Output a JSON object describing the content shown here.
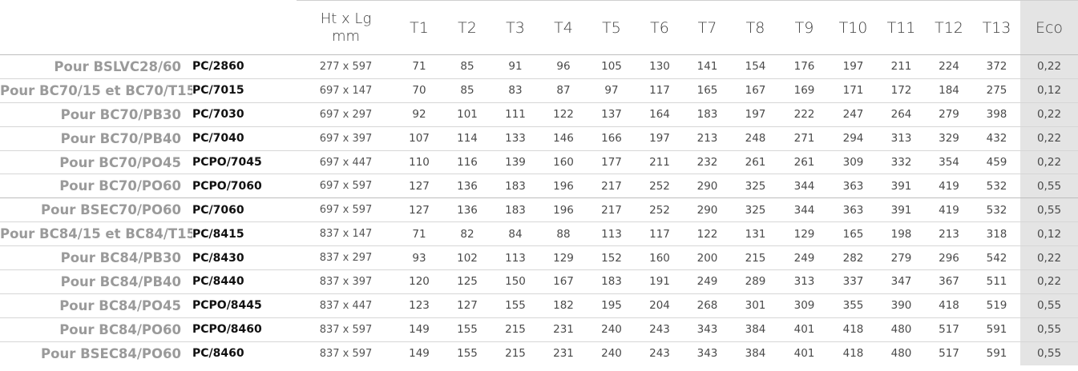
{
  "table": {
    "headers": {
      "dims_line1": "Ht x Lg",
      "dims_line2": "mm",
      "t_columns": [
        "T1",
        "T2",
        "T3",
        "T4",
        "T5",
        "T6",
        "T7",
        "T8",
        "T9",
        "T10",
        "T11",
        "T12",
        "T13"
      ],
      "eco": "Eco"
    },
    "rows": [
      {
        "product": "Pour BSLVC28/60",
        "ref": "PC/2860",
        "dims": "277 x 597",
        "t": [
          "71",
          "85",
          "91",
          "96",
          "105",
          "130",
          "141",
          "154",
          "176",
          "197",
          "211",
          "224",
          "372"
        ],
        "eco": "0,22"
      },
      {
        "product": "Pour BC70/15 et BC70/T15",
        "ref": "PC/7015",
        "dims": "697 x 147",
        "t": [
          "70",
          "85",
          "83",
          "87",
          "97",
          "117",
          "165",
          "167",
          "169",
          "171",
          "172",
          "184",
          "275"
        ],
        "eco": "0,12"
      },
      {
        "product": "Pour BC70/PB30",
        "ref": "PC/7030",
        "dims": "697 x 297",
        "t": [
          "92",
          "101",
          "111",
          "122",
          "137",
          "164",
          "183",
          "197",
          "222",
          "247",
          "264",
          "279",
          "398"
        ],
        "eco": "0,22"
      },
      {
        "product": "Pour BC70/PB40",
        "ref": "PC/7040",
        "dims": "697 x 397",
        "t": [
          "107",
          "114",
          "133",
          "146",
          "166",
          "197",
          "213",
          "248",
          "271",
          "294",
          "313",
          "329",
          "432"
        ],
        "eco": "0,22"
      },
      {
        "product": "Pour BC70/PO45",
        "ref": "PCPO/7045",
        "dims": "697 x 447",
        "t": [
          "110",
          "116",
          "139",
          "160",
          "177",
          "211",
          "232",
          "261",
          "261",
          "309",
          "332",
          "354",
          "459"
        ],
        "eco": "0,22"
      },
      {
        "product": "Pour BC70/PO60",
        "ref": "PCPO/7060",
        "dims": "697 x 597",
        "t": [
          "127",
          "136",
          "183",
          "196",
          "217",
          "252",
          "290",
          "325",
          "344",
          "363",
          "391",
          "419",
          "532"
        ],
        "eco": "0,55"
      },
      {
        "product": "Pour BSEC70/PO60",
        "ref": "PC/7060",
        "dims": "697 x 597",
        "t": [
          "127",
          "136",
          "183",
          "196",
          "217",
          "252",
          "290",
          "325",
          "344",
          "363",
          "391",
          "419",
          "532"
        ],
        "eco": "0,55"
      },
      {
        "product": "Pour BC84/15 et BC84/T15",
        "ref": "PC/8415",
        "dims": "837 x 147",
        "t": [
          "71",
          "82",
          "84",
          "88",
          "113",
          "117",
          "122",
          "131",
          "129",
          "165",
          "198",
          "213",
          "318"
        ],
        "eco": "0,12"
      },
      {
        "product": "Pour BC84/PB30",
        "ref": "PC/8430",
        "dims": "837 x 297",
        "t": [
          "93",
          "102",
          "113",
          "129",
          "152",
          "160",
          "200",
          "215",
          "249",
          "282",
          "279",
          "296",
          "542"
        ],
        "eco": "0,22"
      },
      {
        "product": "Pour BC84/PB40",
        "ref": "PC/8440",
        "dims": "837 x 397",
        "t": [
          "120",
          "125",
          "150",
          "167",
          "183",
          "191",
          "249",
          "289",
          "313",
          "337",
          "347",
          "367",
          "511"
        ],
        "eco": "0,22"
      },
      {
        "product": "Pour BC84/PO45",
        "ref": "PCPO/8445",
        "dims": "837 x 447",
        "t": [
          "123",
          "127",
          "155",
          "182",
          "195",
          "204",
          "268",
          "301",
          "309",
          "355",
          "390",
          "418",
          "519"
        ],
        "eco": "0,55"
      },
      {
        "product": "Pour BC84/PO60",
        "ref": "PCPO/8460",
        "dims": "837 x 597",
        "t": [
          "149",
          "155",
          "215",
          "231",
          "240",
          "243",
          "343",
          "384",
          "401",
          "418",
          "480",
          "517",
          "591"
        ],
        "eco": "0,55"
      },
      {
        "product": "Pour BSEC84/PO60",
        "ref": "PC/8460",
        "dims": "837 x 597",
        "t": [
          "149",
          "155",
          "215",
          "231",
          "240",
          "243",
          "343",
          "384",
          "401",
          "418",
          "480",
          "517",
          "591"
        ],
        "eco": "0,55"
      }
    ]
  },
  "colors": {
    "eco_column_background": "#e4e4e4",
    "product_text": "#9a9a9a",
    "reference_text": "#111111"
  }
}
